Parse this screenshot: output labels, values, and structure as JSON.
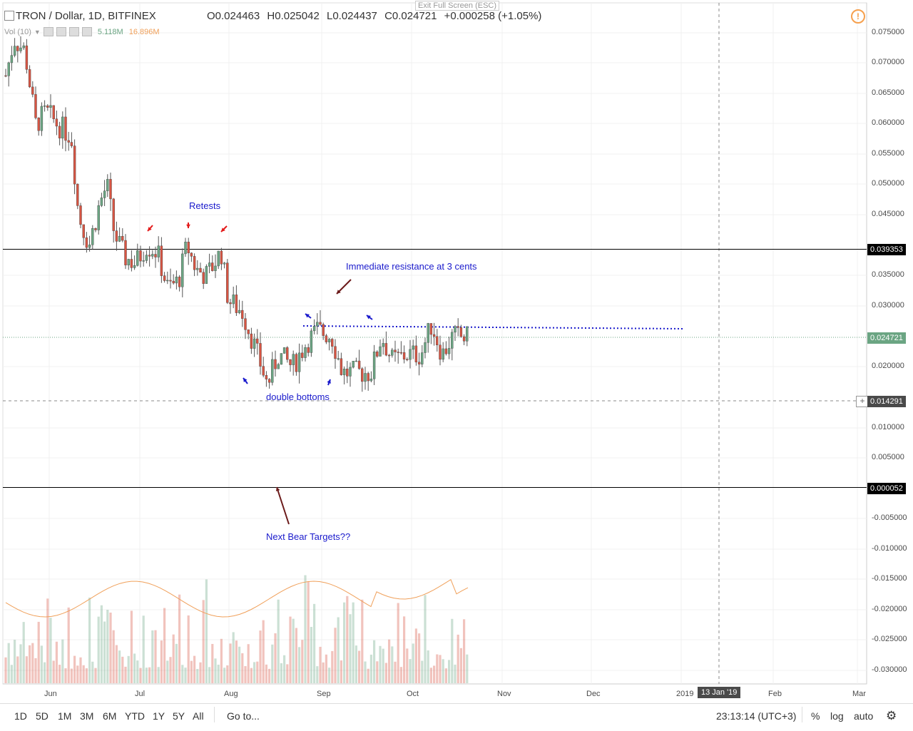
{
  "header": {
    "title": "TRON / Dollar, 1D, BITFINEX",
    "open": "O0.024463",
    "high": "H0.025042",
    "low": "L0.024437",
    "close": "C0.024721",
    "change": "+0.000258 (+1.05%)",
    "exit_fullscreen": "Exit Full Screen (ESC)"
  },
  "volume_indicator": {
    "label": "Vol (10)",
    "value1": "5.118M",
    "value2": "16.896M"
  },
  "price_axis": {
    "ticks": [
      "0.075000",
      "0.070000",
      "0.065000",
      "0.060000",
      "0.055000",
      "0.050000",
      "0.045000",
      "0.035000",
      "0.030000",
      "0.020000",
      "0.010000",
      "0.005000",
      "-0.005000",
      "-0.010000",
      "-0.015000",
      "-0.020000",
      "-0.025000",
      "-0.030000"
    ],
    "labels": {
      "resistance": "0.039353",
      "current": "0.024721",
      "crosshair": "0.014291",
      "bear_target": "0.000052"
    }
  },
  "time_axis": {
    "ticks": [
      "Jun",
      "Jul",
      "Aug",
      "Sep",
      "Oct",
      "Nov",
      "Dec",
      "2019",
      "13 Jan '19",
      "Feb",
      "Mar"
    ]
  },
  "annotations": {
    "retests": "Retests",
    "resistance": "Immediate resistance at 3 cents",
    "double_bottoms": "double bottoms",
    "bear_targets": "Next Bear Targets??"
  },
  "toolbar": {
    "ranges": [
      "1D",
      "5D",
      "1M",
      "3M",
      "6M",
      "YTD",
      "1Y",
      "5Y",
      "All"
    ],
    "goto": "Go to...",
    "clock": "23:13:14 (UTC+3)",
    "percent": "%",
    "log": "log",
    "auto": "auto"
  },
  "colors": {
    "up": "#6ba583",
    "down": "#d75442",
    "annotation": "#1a1acc",
    "arrow_blue": "#1a1acc",
    "arrow_red": "#e31b1b",
    "arrow_brown": "#6b1a1a",
    "current_price_bg": "#6ba583",
    "line_black": "#000000",
    "vol_ma": "#f0a05a"
  },
  "chart_data": {
    "type": "candlestick",
    "price_range": [
      -0.0325,
      0.0775
    ],
    "levels": {
      "resistance": 0.039353,
      "bear_target": 5.2e-05,
      "current": 0.024721,
      "crosshair": 0.014291,
      "dotted_resistance": 0.0263
    }
  }
}
